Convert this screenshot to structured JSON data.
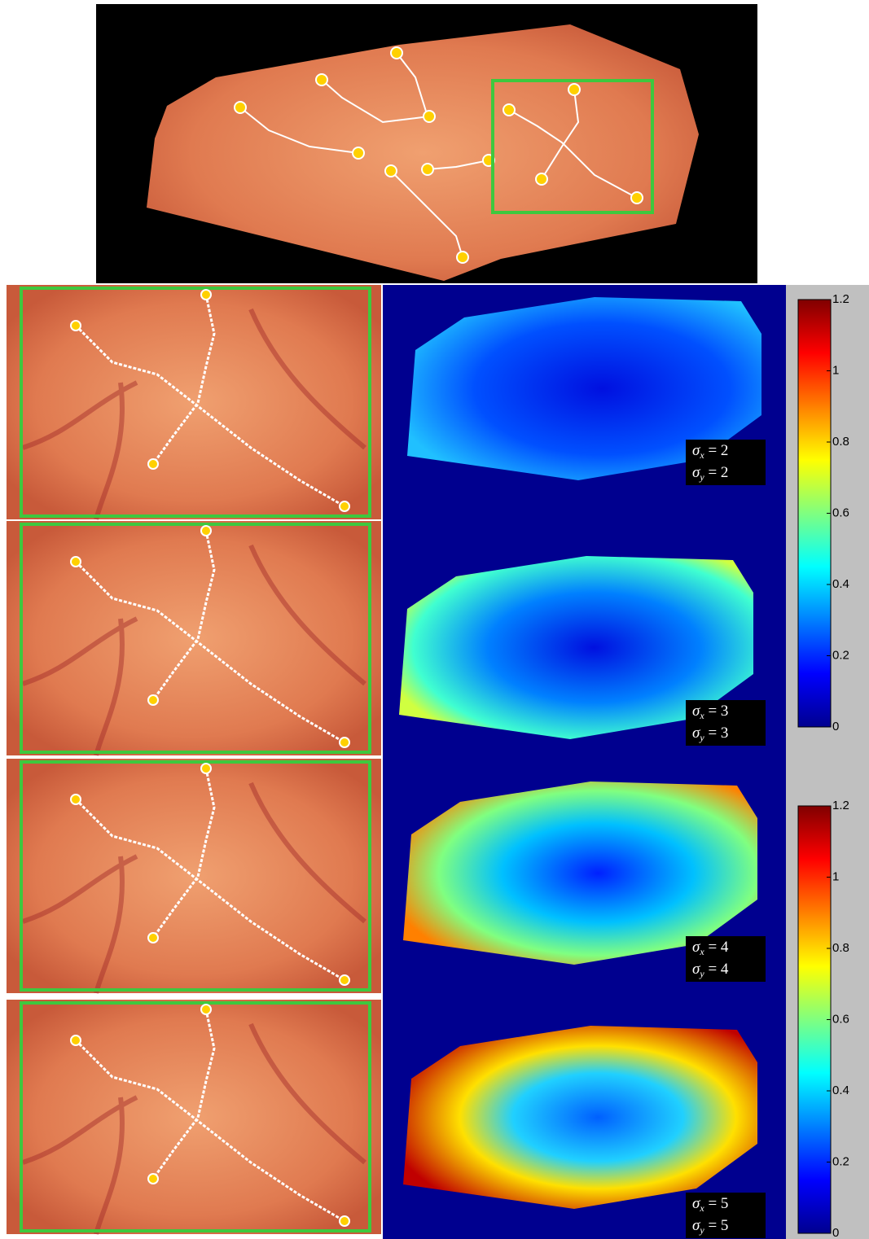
{
  "colorbars": [
    {
      "range": [
        0,
        1.2
      ],
      "ticks": [
        0,
        0.2,
        0.4,
        0.6,
        0.8,
        1,
        1.2
      ]
    },
    {
      "range": [
        0,
        1.2
      ],
      "ticks": [
        0,
        0.2,
        0.4,
        0.6,
        0.8,
        1,
        1.2
      ]
    }
  ],
  "panels": [
    {
      "sigma_x": {
        "symbol": "σ",
        "sub": "x",
        "rest": " = 2"
      },
      "sigma_y": {
        "symbol": "σ",
        "sub": "y",
        "rest": " = 2"
      }
    },
    {
      "sigma_x": {
        "symbol": "σ",
        "sub": "x",
        "rest": " = 3"
      },
      "sigma_y": {
        "symbol": "σ",
        "sub": "y",
        "rest": " = 3"
      }
    },
    {
      "sigma_x": {
        "symbol": "σ",
        "sub": "x",
        "rest": " = 4"
      },
      "sigma_y": {
        "symbol": "σ",
        "sub": "y",
        "rest": " = 4"
      }
    },
    {
      "sigma_x": {
        "symbol": "σ",
        "sub": "x",
        "rest": " = 5"
      },
      "sigma_y": {
        "symbol": "σ",
        "sub": "y",
        "rest": " = 5"
      }
    }
  ]
}
